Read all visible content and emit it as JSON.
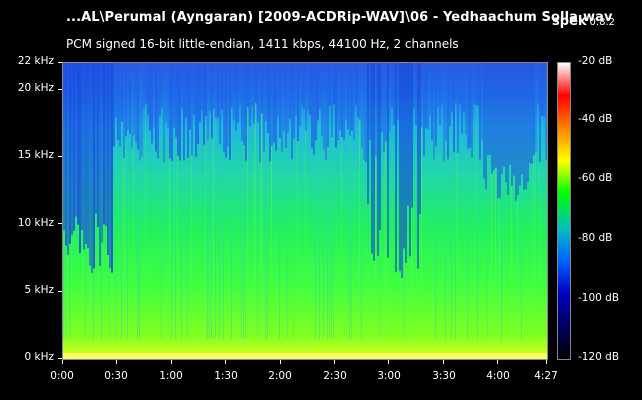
{
  "header": {
    "file_title": "...AL\\Perumal (Ayngaran) [2009-ACDRip-WAV]\\06 - Yedhaachum Solla.wav",
    "app_name": "spek",
    "app_version": "0.8.2",
    "stream_info": "PCM signed 16-bit little-endian, 1411 kbps, 44100 Hz, 2 channels"
  },
  "frequency_axis": {
    "labels": [
      "22 kHz",
      "20 kHz",
      "15 kHz",
      "10 kHz",
      "5 kHz",
      "0 kHz"
    ],
    "values_khz": [
      22,
      20,
      15,
      10,
      5,
      0
    ],
    "max_khz": 22
  },
  "time_axis": {
    "labels": [
      "0:00",
      "0:30",
      "1:00",
      "1:30",
      "2:00",
      "2:30",
      "3:00",
      "3:30",
      "4:00",
      "4:27"
    ],
    "values_s": [
      0,
      30,
      60,
      90,
      120,
      150,
      180,
      210,
      240,
      267
    ],
    "duration_s": 267
  },
  "db_scale": {
    "labels": [
      "-20 dB",
      "-40 dB",
      "-60 dB",
      "-80 dB",
      "-100 dB",
      "-120 dB"
    ],
    "values_db": [
      -20,
      -40,
      -60,
      -80,
      -100,
      -120
    ],
    "colors": [
      "#ffffff",
      "#ff0000",
      "#ff8000",
      "#ffff00",
      "#00ff00",
      "#00c0c0",
      "#0060ff",
      "#0000c0",
      "#000060",
      "#000000"
    ]
  },
  "colors": {
    "background": "#000000",
    "text": "#ffffff",
    "frame": "#888888"
  }
}
